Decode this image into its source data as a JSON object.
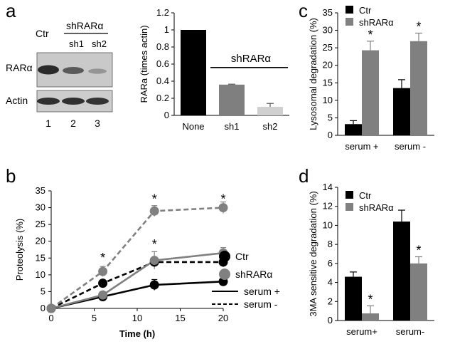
{
  "panel_a": {
    "letter": "a",
    "blot": {
      "lane_labels": [
        "Ctr",
        "sh1",
        "sh2"
      ],
      "group_label": "shRARα",
      "row_labels": [
        "RARα",
        "Actin"
      ],
      "lane_numbers": [
        "1",
        "2",
        "3"
      ]
    }
  },
  "panel_b": {
    "letter": "b"
  },
  "panel_c": {
    "letter": "c"
  },
  "panel_d": {
    "letter": "d"
  },
  "chart_data": [
    {
      "id": "a",
      "type": "bar",
      "categories": [
        "None",
        "sh1",
        "sh2"
      ],
      "values": [
        1.0,
        0.36,
        0.1
      ],
      "errors": [
        0,
        0.005,
        0.04
      ],
      "colors": [
        "#000000",
        "#7f7f7f",
        "#d0d0d0"
      ],
      "ylabel": "RARa (times actin)",
      "ylim": [
        0,
        1.2
      ],
      "yticks": [
        0,
        0.2,
        0.4,
        0.6,
        0.8,
        1,
        1.2
      ],
      "ytick_labels": [
        "0",
        "0.2",
        "0.4",
        "0.6",
        "0.8",
        "1",
        "1.2"
      ],
      "group_annotation": "shRARα"
    },
    {
      "id": "b",
      "type": "line",
      "x": [
        0,
        6,
        12,
        20
      ],
      "xlabel": "Time (h)",
      "ylabel": "Proteolysis (%)",
      "xlim": [
        0,
        20
      ],
      "ylim": [
        0,
        35
      ],
      "xticks": [
        0,
        5,
        10,
        15,
        20
      ],
      "yticks": [
        0,
        5,
        10,
        15,
        20,
        25,
        30,
        35
      ],
      "series": [
        {
          "name": "Ctr",
          "condition": "serum +",
          "color": "#000000",
          "dashed": false,
          "values": [
            0,
            3.5,
            7,
            8
          ],
          "errors": [
            0,
            0.6,
            1.6,
            1.3
          ]
        },
        {
          "name": "Ctr",
          "condition": "serum -",
          "color": "#000000",
          "dashed": true,
          "values": [
            0,
            7.5,
            13.8,
            13.8
          ],
          "errors": [
            0,
            0.7,
            0.8,
            1.4
          ]
        },
        {
          "name": "shRARα",
          "condition": "serum +",
          "color": "#808080",
          "dashed": false,
          "values": [
            0,
            4,
            14.3,
            16.5
          ],
          "errors": [
            0,
            0.7,
            2.6,
            1.6
          ]
        },
        {
          "name": "shRARα",
          "condition": "serum -",
          "color": "#808080",
          "dashed": true,
          "values": [
            0,
            11,
            29,
            30
          ],
          "errors": [
            0,
            1.5,
            1.6,
            1.7
          ]
        }
      ],
      "significance": [
        {
          "x": 6,
          "y": 15.5,
          "text": "*"
        },
        {
          "x": 12,
          "y": 33,
          "text": "*"
        },
        {
          "x": 12,
          "y": 19.5,
          "text": "*"
        },
        {
          "x": 20,
          "y": 33,
          "text": "*"
        }
      ],
      "legend": {
        "markers": [
          {
            "label": "Ctr",
            "color": "#000000"
          },
          {
            "label": "shRARα",
            "color": "#808080"
          }
        ],
        "lines": [
          {
            "label": "serum +",
            "dashed": false
          },
          {
            "label": "serum -",
            "dashed": true
          }
        ],
        "placement": "right"
      }
    },
    {
      "id": "c",
      "type": "bar",
      "categories": [
        "serum +",
        "serum -"
      ],
      "ylabel": "Lysosomal degradation (%)",
      "ylim": [
        0,
        35
      ],
      "yticks": [
        0,
        5,
        10,
        15,
        20,
        25,
        30,
        35
      ],
      "series": [
        {
          "name": "Ctr",
          "color": "#000000",
          "values": [
            3.2,
            13.5
          ],
          "errors": [
            1.0,
            2.4
          ]
        },
        {
          "name": "shRARα",
          "color": "#808080",
          "values": [
            24.3,
            26.9
          ],
          "errors": [
            2.6,
            2.3
          ]
        }
      ],
      "significance": [
        {
          "category": 0,
          "series": 1,
          "text": "*"
        },
        {
          "category": 1,
          "series": 1,
          "text": "*"
        }
      ],
      "legend_placement": "top-left"
    },
    {
      "id": "d",
      "type": "bar",
      "categories": [
        "serum+",
        "serum-"
      ],
      "ylabel": "3MA sensitive degradation (%)",
      "ylim": [
        0,
        14
      ],
      "yticks": [
        0,
        2,
        4,
        6,
        8,
        10,
        12,
        14
      ],
      "series": [
        {
          "name": "Ctr",
          "color": "#000000",
          "values": [
            4.6,
            10.4
          ],
          "errors": [
            0.5,
            1.2
          ]
        },
        {
          "name": "shRARα",
          "color": "#808080",
          "values": [
            0.75,
            6.0
          ],
          "errors": [
            0.8,
            0.7
          ]
        }
      ],
      "significance": [
        {
          "category": 0,
          "series": 1,
          "text": "*"
        },
        {
          "category": 1,
          "series": 1,
          "text": "*"
        }
      ],
      "legend_placement": "top-left"
    }
  ]
}
